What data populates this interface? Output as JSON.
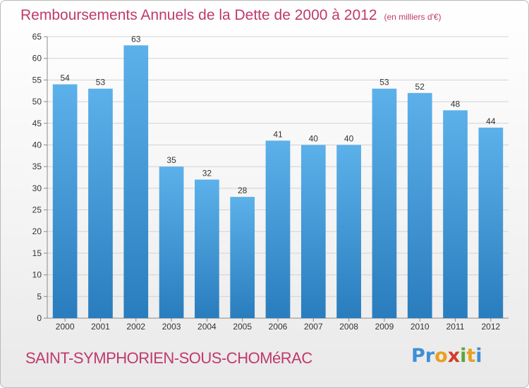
{
  "title": "Remboursements Annuels de la Dette de 2000 à 2012",
  "title_unit": "(en milliers d'€)",
  "place_name": "SAINT-SYMPHORIEN-SOUS-CHOMéRAC",
  "brand": {
    "letters": [
      "P",
      "r",
      "o",
      "x",
      "i",
      "t",
      "i"
    ],
    "colors": [
      "#3d8fd6",
      "#3d8fd6",
      "#e8a020",
      "#d23c2a",
      "#5aa83a",
      "#e8a020",
      "#3d8fd6"
    ]
  },
  "colors": {
    "bar_light": "#5cb1ea",
    "bar_dark": "#2a7dbd",
    "title": "#c0396d"
  },
  "chart_data": {
    "type": "bar",
    "title": "Remboursements Annuels de la Dette de 2000 à 2012",
    "subtitle": "(en milliers d'€)",
    "xlabel": "",
    "ylabel": "",
    "categories": [
      "2000",
      "2001",
      "2002",
      "2003",
      "2004",
      "2005",
      "2006",
      "2007",
      "2008",
      "2009",
      "2010",
      "2011",
      "2012"
    ],
    "values": [
      54,
      53,
      63,
      35,
      32,
      28,
      41,
      40,
      40,
      53,
      52,
      48,
      44
    ],
    "ylim": [
      0,
      65
    ],
    "yticks": [
      0,
      5,
      10,
      15,
      20,
      25,
      30,
      35,
      40,
      45,
      50,
      55,
      60,
      65
    ],
    "grid": true,
    "data_labels": true,
    "legend": false
  }
}
